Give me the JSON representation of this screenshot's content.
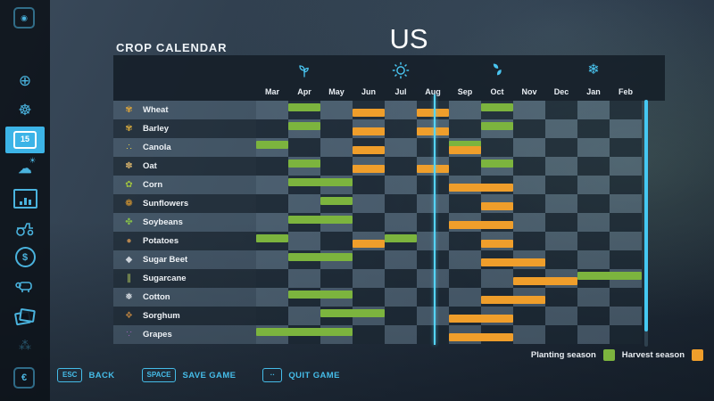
{
  "header": {
    "title": "CROP CALENDAR",
    "map_name": "US"
  },
  "sidebar": {
    "top_tab_glyph": "◉",
    "bottom_tab_glyph": "€",
    "accent": "#3cb4e7",
    "items": [
      {
        "name": "map-overview",
        "glyph": "⊕"
      },
      {
        "name": "vehicles",
        "glyph": "☸"
      },
      {
        "name": "calendar",
        "active": true,
        "day": "15"
      },
      {
        "name": "weather",
        "glyph": "☁",
        "glyph2": "☀"
      },
      {
        "name": "statistics"
      },
      {
        "name": "garage"
      },
      {
        "name": "finances",
        "glyph": "$"
      },
      {
        "name": "animals"
      },
      {
        "name": "maps-notes"
      },
      {
        "name": "multiplayer",
        "glyph": "⁂"
      }
    ]
  },
  "calendar": {
    "months": [
      "Mar",
      "Apr",
      "May",
      "Jun",
      "Jul",
      "Aug",
      "Sep",
      "Oct",
      "Nov",
      "Dec",
      "Jan",
      "Feb"
    ],
    "seasons": [
      {
        "name": "spring",
        "icon": "sprout",
        "month_index": 1
      },
      {
        "name": "summer",
        "icon": "sun",
        "month_index": 4
      },
      {
        "name": "autumn",
        "icon": "leaves",
        "month_index": 7
      },
      {
        "name": "winter",
        "icon": "snowflake",
        "month_index": 10,
        "glyph": "❄"
      }
    ],
    "colors": {
      "planting": "#7cb43e",
      "harvest": "#ef9e2b",
      "accent": "#45bce8",
      "day_line": "#55d4fb"
    },
    "current_day": {
      "month_index": 5,
      "fraction": 0.55
    },
    "crops": [
      {
        "name": "Wheat",
        "icon": "wheat",
        "glyph": "✾",
        "icon_color": "#d9a33c",
        "planting": [
          [
            1,
            1
          ],
          [
            7,
            7
          ]
        ],
        "harvest": [
          [
            3,
            3
          ],
          [
            5,
            5
          ]
        ]
      },
      {
        "name": "Barley",
        "icon": "barley",
        "glyph": "✾",
        "icon_color": "#cfa53f",
        "planting": [
          [
            1,
            1
          ],
          [
            7,
            7
          ]
        ],
        "harvest": [
          [
            3,
            3
          ],
          [
            5,
            5
          ]
        ]
      },
      {
        "name": "Canola",
        "icon": "canola",
        "glyph": "∴",
        "icon_color": "#e8cf4a",
        "planting": [
          [
            0,
            0
          ],
          [
            6,
            6
          ]
        ],
        "harvest": [
          [
            3,
            3
          ],
          [
            6,
            6
          ]
        ]
      },
      {
        "name": "Oat",
        "icon": "oat",
        "glyph": "✽",
        "icon_color": "#d4b06a",
        "planting": [
          [
            1,
            1
          ],
          [
            7,
            7
          ]
        ],
        "harvest": [
          [
            3,
            3
          ],
          [
            5,
            5
          ]
        ]
      },
      {
        "name": "Corn",
        "icon": "corn",
        "glyph": "✿",
        "icon_color": "#9ec13f",
        "planting": [
          [
            1,
            2
          ]
        ],
        "harvest": [
          [
            6,
            7
          ]
        ]
      },
      {
        "name": "Sunflowers",
        "icon": "sunflower",
        "glyph": "❁",
        "icon_color": "#efa52f",
        "planting": [
          [
            2,
            2
          ]
        ],
        "harvest": [
          [
            7,
            7
          ]
        ]
      },
      {
        "name": "Soybeans",
        "icon": "soybean",
        "glyph": "✤",
        "icon_color": "#84bb4a",
        "planting": [
          [
            1,
            2
          ]
        ],
        "harvest": [
          [
            6,
            7
          ]
        ]
      },
      {
        "name": "Potatoes",
        "icon": "potato",
        "glyph": "●",
        "icon_color": "#b5854f",
        "planting": [
          [
            0,
            0
          ],
          [
            4,
            4
          ]
        ],
        "harvest": [
          [
            3,
            3
          ],
          [
            7,
            7
          ]
        ]
      },
      {
        "name": "Sugar Beet",
        "icon": "sugar-beet",
        "glyph": "◆",
        "icon_color": "#ccd3da",
        "planting": [
          [
            1,
            2
          ]
        ],
        "harvest": [
          [
            7,
            8
          ]
        ]
      },
      {
        "name": "Sugarcane",
        "icon": "sugarcane",
        "glyph": "∥",
        "icon_color": "#b9cf5e",
        "planting": [
          [
            10,
            11
          ]
        ],
        "harvest": [
          [
            8,
            9
          ]
        ]
      },
      {
        "name": "Cotton",
        "icon": "cotton",
        "glyph": "❅",
        "icon_color": "#eef2f6",
        "planting": [
          [
            1,
            2
          ]
        ],
        "harvest": [
          [
            7,
            8
          ]
        ]
      },
      {
        "name": "Sorghum",
        "icon": "sorghum",
        "glyph": "❖",
        "icon_color": "#b07c3f",
        "planting": [
          [
            2,
            3
          ]
        ],
        "harvest": [
          [
            6,
            7
          ]
        ]
      },
      {
        "name": "Grapes",
        "icon": "grapes",
        "glyph": "∵",
        "icon_color": "#9a62b5",
        "planting": [
          [
            0,
            2
          ]
        ],
        "harvest": [
          [
            6,
            7
          ]
        ]
      }
    ]
  },
  "legend": {
    "planting_label": "Planting season",
    "harvest_label": "Harvest season"
  },
  "footer": {
    "buttons": [
      {
        "name": "back-button",
        "key": "ESC",
        "label": "BACK"
      },
      {
        "name": "save-game-button",
        "key": "SPACE",
        "label": "SAVE GAME"
      },
      {
        "name": "quit-game-button",
        "key": "··",
        "label": "QUIT GAME"
      }
    ]
  }
}
